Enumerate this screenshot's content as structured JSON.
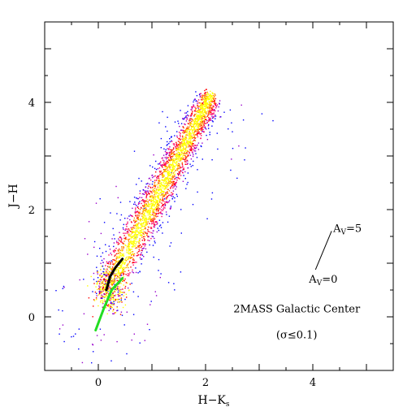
{
  "chart_data": {
    "type": "scatter",
    "title": "",
    "xlabel": "H−K",
    "xlabel_subscript": "s",
    "ylabel": "J−H",
    "xlim": [
      -1,
      5.5
    ],
    "ylim": [
      -1,
      5.5
    ],
    "x_ticks": [
      {
        "value": 0,
        "label": "0"
      },
      {
        "value": 2,
        "label": "2"
      },
      {
        "value": 4,
        "label": "4"
      }
    ],
    "y_ticks": [
      {
        "value": 0,
        "label": "0"
      },
      {
        "value": 2,
        "label": "2"
      },
      {
        "value": 4,
        "label": "4"
      }
    ],
    "grid": false,
    "density_colors": [
      "#0000ff",
      "#9900cc",
      "#ff0066",
      "#ff0000",
      "#ff8800",
      "#ffff00"
    ],
    "main_locus": {
      "description_axis": "dense stellar locus of reddened giants",
      "start": [
        0.3,
        0.8
      ],
      "end": [
        2.1,
        4.15
      ],
      "peak_density_range": [
        0.4,
        2.6
      ]
    },
    "scatter_density_points": [
      {
        "x": 0.3,
        "y": 0.8
      },
      {
        "x": 0.5,
        "y": 1.2
      },
      {
        "x": 0.7,
        "y": 1.6
      },
      {
        "x": 0.9,
        "y": 2.0
      },
      {
        "x": 1.1,
        "y": 2.4
      },
      {
        "x": 1.3,
        "y": 2.8
      },
      {
        "x": 1.5,
        "y": 3.2
      },
      {
        "x": 1.7,
        "y": 3.6
      },
      {
        "x": 1.9,
        "y": 3.9
      },
      {
        "x": 2.1,
        "y": 4.15
      }
    ],
    "dwarf_track": {
      "color": "#22dd22",
      "points": [
        [
          -0.05,
          -0.25
        ],
        [
          0.1,
          0.15
        ],
        [
          0.25,
          0.5
        ],
        [
          0.45,
          0.72
        ]
      ]
    },
    "giant_track": {
      "color": "#000000",
      "points": [
        [
          0.15,
          0.5
        ],
        [
          0.22,
          0.75
        ],
        [
          0.32,
          0.92
        ],
        [
          0.45,
          1.08
        ]
      ]
    },
    "reddening_vector": {
      "from": [
        4.05,
        0.88
      ],
      "to": [
        4.35,
        1.6
      ],
      "label_start": "A",
      "label_start_sub": "V",
      "label_start_value": "=0",
      "label_end": "A",
      "label_end_sub": "V",
      "label_end_value": "=5"
    },
    "annotations": [
      {
        "text": "2MASS Galactic Center",
        "x": 3.7,
        "y": 0.08
      },
      {
        "text": "(σ≤0.1)",
        "x": 3.7,
        "y": -0.4
      }
    ]
  }
}
